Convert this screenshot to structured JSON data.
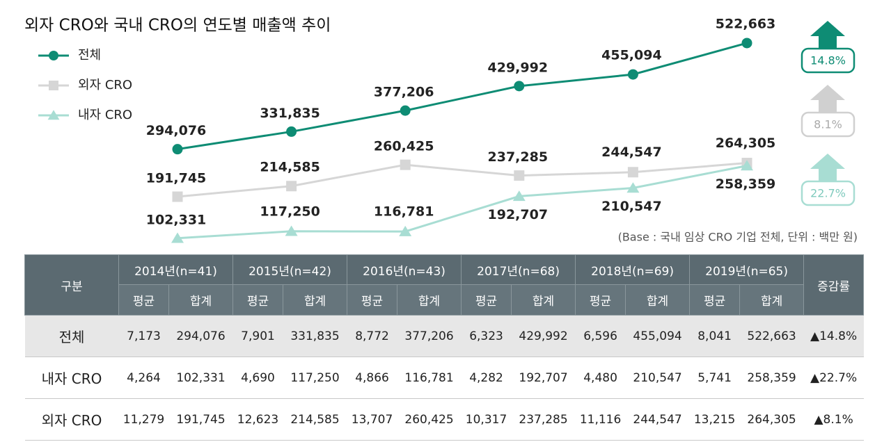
{
  "chart_data": {
    "type": "line",
    "title": "외자 CRO와 국내 CRO의 연도별 매출액 추이",
    "note": "(Base : 국내 임상 CRO 기업 전체, 단위 : 백만 원)",
    "categories": [
      null,
      null,
      null,
      null,
      null,
      null
    ],
    "ylim": [
      90000,
      560000
    ],
    "series": [
      {
        "name": "전체",
        "color": "#0e8c74",
        "marker": "circle",
        "values": [
          294076,
          331835,
          377206,
          429992,
          455094,
          522663
        ],
        "value_labels": [
          "294,076",
          "331,835",
          "377,206",
          "429,992",
          "455,094",
          "522,663"
        ]
      },
      {
        "name": "외자 CRO",
        "color": "#d6d6d6",
        "marker": "square",
        "values": [
          191745,
          214585,
          260425,
          237285,
          244547,
          264305
        ],
        "value_labels": [
          "191,745",
          "214,585",
          "260,425",
          "237,285",
          "244,547",
          "264,305"
        ]
      },
      {
        "name": "내자 CRO",
        "color": "#a8ddd3",
        "marker": "triangle",
        "values": [
          102331,
          117250,
          116781,
          192707,
          210547,
          258359
        ],
        "value_labels": [
          "102,331",
          "117,250",
          "116,781",
          "192,707",
          "210,547",
          "258,359"
        ]
      }
    ],
    "annotations": [
      "14.8%",
      "8.1%",
      "22.7%"
    ]
  },
  "table": {
    "corner": "구분",
    "years": [
      "2014년(n=41)",
      "2015년(n=42)",
      "2016년(n=43)",
      "2017년(n=68)",
      "2018년(n=69)",
      "2019년(n=65)"
    ],
    "change": "증감률",
    "subheaders": [
      "평균",
      "합계",
      "평균",
      "합계",
      "평균",
      "합계",
      "평균",
      "합계",
      "평균",
      "합계",
      "평균",
      "합계"
    ],
    "rows": [
      {
        "label": "전체",
        "cells": [
          "7,173",
          "294,076",
          "7,901",
          "331,835",
          "8,772",
          "377,206",
          "6,323",
          "429,992",
          "6,596",
          "455,094",
          "8,041",
          "522,663"
        ],
        "change": "▲14.8%"
      },
      {
        "label": "내자 CRO",
        "cells": [
          "4,264",
          "102,331",
          "4,690",
          "117,250",
          "4,866",
          "116,781",
          "4,282",
          "192,707",
          "4,480",
          "210,547",
          "5,741",
          "258,359"
        ],
        "change": "▲22.7%"
      },
      {
        "label": "외자 CRO",
        "cells": [
          "11,279",
          "191,745",
          "12,623",
          "214,585",
          "13,707",
          "260,425",
          "10,317",
          "237,285",
          "11,116",
          "244,547",
          "13,215",
          "264,305"
        ],
        "change": "▲8.1%"
      }
    ]
  }
}
